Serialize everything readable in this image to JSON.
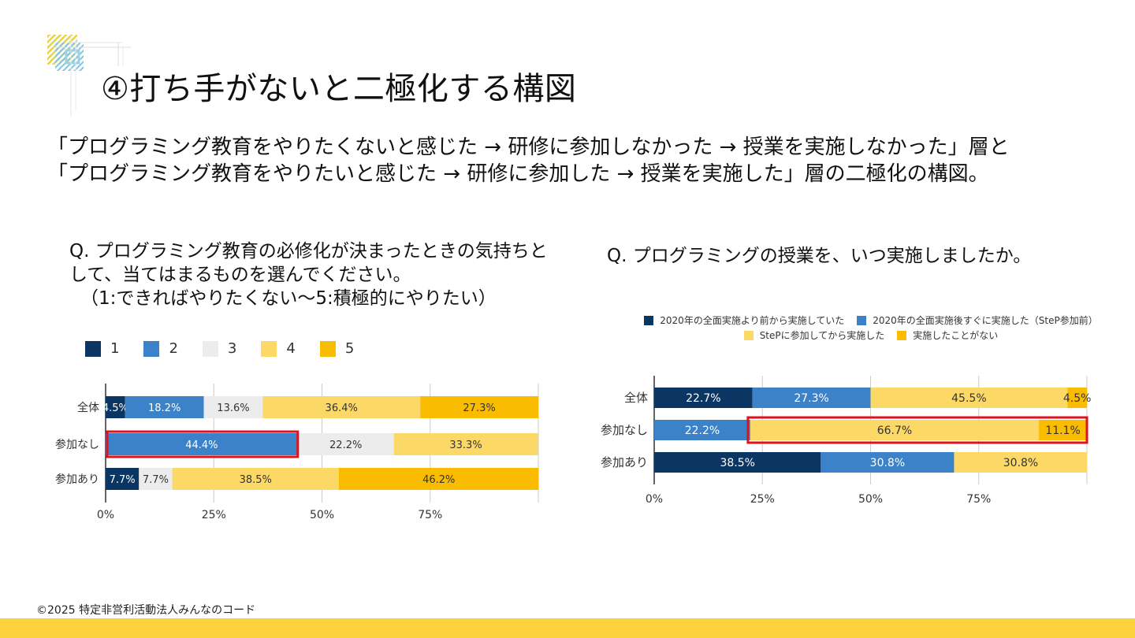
{
  "slide": {
    "title": "④打ち手がないと二極化する構図",
    "intro_line1": "「プログラミング教育をやりたくないと感じた → 研修に参加しなかった → 授業を実施しなかった」層と",
    "intro_line2": "「プログラミング教育をやりたいと感じた → 研修に参加した → 授業を実施した」層の二極化の構図。",
    "footer": "©2025 特定非営利活動法人みんなのコード",
    "accent_color": "#fdd23f",
    "highlight_color": "#e0121b"
  },
  "q1": {
    "line1": "Q. プログラミング教育の必修化が決まったときの気持ちと",
    "line2": "して、当てはまるものを選んでください。",
    "line3": "（1:できればやりたくない〜5:積極的にやりたい）"
  },
  "q2": {
    "line1": "Q. プログラミングの授業を、いつ実施しましたか。"
  },
  "legend1": [
    {
      "label": "1",
      "color": "#0b3663"
    },
    {
      "label": "2",
      "color": "#3b82c9"
    },
    {
      "label": "3",
      "color": "#ececec"
    },
    {
      "label": "4",
      "color": "#fcd966"
    },
    {
      "label": "5",
      "color": "#f9bc00"
    }
  ],
  "legend2": [
    {
      "label": "2020年の全面実施より前から実施していた",
      "color": "#0b3663"
    },
    {
      "label": "2020年の全面実施後すぐに実施した（SteP参加前）",
      "color": "#3b82c9"
    },
    {
      "label": "StePに参加してから実施した",
      "color": "#fcd966"
    },
    {
      "label": "実施したことがない",
      "color": "#f9bc00"
    }
  ],
  "chart_data": [
    {
      "type": "bar",
      "orientation": "horizontal",
      "stacked": true,
      "categories": [
        "全体",
        "参加なし",
        "参加あり"
      ],
      "series": [
        {
          "name": "1",
          "color": "#0b3663",
          "text_color": "#ffffff",
          "values": [
            4.5,
            0,
            7.7
          ],
          "labels": [
            "4.5%",
            "",
            "7.7%"
          ]
        },
        {
          "name": "2",
          "color": "#3b82c9",
          "text_color": "#ffffff",
          "values": [
            18.2,
            44.4,
            0
          ],
          "labels": [
            "18.2%",
            "44.4%",
            ""
          ]
        },
        {
          "name": "3",
          "color": "#ececec",
          "text_color": "#333333",
          "values": [
            13.6,
            22.2,
            7.7
          ],
          "labels": [
            "13.6%",
            "22.2%",
            "7.7%"
          ]
        },
        {
          "name": "4",
          "color": "#fcd966",
          "text_color": "#333333",
          "values": [
            36.4,
            33.3,
            38.5
          ],
          "labels": [
            "36.4%",
            "33.3%",
            "38.5%"
          ]
        },
        {
          "name": "5",
          "color": "#f9bc00",
          "text_color": "#333333",
          "values": [
            27.3,
            0,
            46.2
          ],
          "labels": [
            "27.3%",
            "",
            "46.2%"
          ]
        }
      ],
      "x_ticks": [
        "0%",
        "25%",
        "50%",
        "75%"
      ],
      "xlim": [
        0,
        100
      ],
      "grid": true,
      "highlight": {
        "category": "参加なし",
        "series": [
          "2"
        ]
      }
    },
    {
      "type": "bar",
      "orientation": "horizontal",
      "stacked": true,
      "categories": [
        "全体",
        "参加なし",
        "参加あり"
      ],
      "series": [
        {
          "name": "2020年の全面実施より前から実施していた",
          "color": "#0b3663",
          "text_color": "#ffffff",
          "values": [
            22.7,
            0,
            38.5
          ],
          "labels": [
            "22.7%",
            "",
            "38.5%"
          ]
        },
        {
          "name": "2020年の全面実施後すぐに実施した（SteP参加前）",
          "color": "#3b82c9",
          "text_color": "#ffffff",
          "values": [
            27.3,
            22.2,
            30.8
          ],
          "labels": [
            "27.3%",
            "22.2%",
            "30.8%"
          ]
        },
        {
          "name": "StePに参加してから実施した",
          "color": "#fcd966",
          "text_color": "#333333",
          "values": [
            45.5,
            66.7,
            30.8
          ],
          "labels": [
            "45.5%",
            "66.7%",
            "30.8%"
          ]
        },
        {
          "name": "実施したことがない",
          "color": "#f9bc00",
          "text_color": "#333333",
          "values": [
            4.5,
            11.1,
            0
          ],
          "labels": [
            "4.5%",
            "11.1%",
            ""
          ]
        }
      ],
      "x_ticks": [
        "0%",
        "25%",
        "50%",
        "75%"
      ],
      "xlim": [
        0,
        100
      ],
      "grid": true,
      "highlight": {
        "category": "参加なし",
        "series": [
          "StePに参加してから実施した",
          "実施したことがない"
        ]
      }
    }
  ]
}
